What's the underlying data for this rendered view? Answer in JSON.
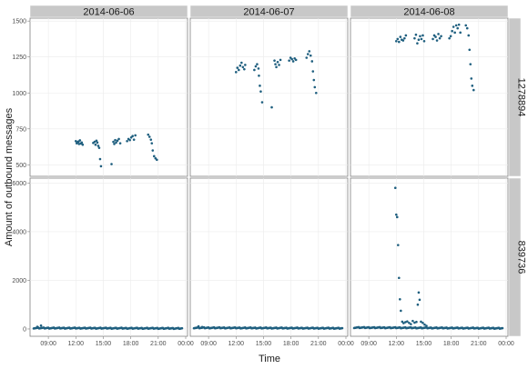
{
  "chart_data": {
    "type": "scatter",
    "xlabel": "Time",
    "ylabel": "Amount of outbound messages",
    "columns": [
      "2014-06-06",
      "2014-06-07",
      "2014-06-08"
    ],
    "rows": [
      "1278894",
      "839736"
    ],
    "x_ticks": [
      "09:00",
      "12:00",
      "15:00",
      "18:00",
      "21:00",
      "00:00"
    ],
    "x_tick_hours": [
      9,
      12,
      15,
      18,
      21,
      24
    ],
    "x_range_hours": [
      7,
      24.2
    ],
    "row_axes": [
      {
        "ylim": [
          420,
          1520
        ],
        "ticks": [
          500,
          750,
          1000,
          1250,
          1500
        ]
      },
      {
        "ylim": [
          -300,
          6200
        ],
        "ticks": [
          0,
          2000,
          4000,
          6000
        ]
      }
    ],
    "point_color": "#1f5f7f",
    "panels": [
      {
        "row": 0,
        "col": 0,
        "points": [
          [
            12.0,
            665
          ],
          [
            12.1,
            650
          ],
          [
            12.2,
            658
          ],
          [
            12.3,
            662
          ],
          [
            12.35,
            645
          ],
          [
            12.45,
            670
          ],
          [
            12.55,
            648
          ],
          [
            12.65,
            655
          ],
          [
            12.75,
            640
          ],
          [
            13.9,
            652
          ],
          [
            14.05,
            660
          ],
          [
            14.15,
            640
          ],
          [
            14.25,
            668
          ],
          [
            14.35,
            655
          ],
          [
            14.45,
            632
          ],
          [
            14.55,
            618
          ],
          [
            14.65,
            540
          ],
          [
            14.75,
            490
          ],
          [
            15.9,
            505
          ],
          [
            16.1,
            660
          ],
          [
            16.2,
            645
          ],
          [
            16.3,
            672
          ],
          [
            16.4,
            655
          ],
          [
            16.55,
            668
          ],
          [
            16.7,
            680
          ],
          [
            16.85,
            650
          ],
          [
            17.6,
            665
          ],
          [
            17.75,
            680
          ],
          [
            17.9,
            672
          ],
          [
            18.05,
            690
          ],
          [
            18.2,
            700
          ],
          [
            18.35,
            675
          ],
          [
            18.5,
            705
          ],
          [
            19.9,
            710
          ],
          [
            20.05,
            695
          ],
          [
            20.2,
            675
          ],
          [
            20.3,
            650
          ],
          [
            20.4,
            600
          ],
          [
            20.55,
            560
          ],
          [
            20.7,
            545
          ],
          [
            20.85,
            535
          ]
        ]
      },
      {
        "row": 0,
        "col": 1,
        "points": [
          [
            12.0,
            1145
          ],
          [
            12.15,
            1175
          ],
          [
            12.3,
            1160
          ],
          [
            12.45,
            1190
          ],
          [
            12.6,
            1210
          ],
          [
            12.75,
            1180
          ],
          [
            12.9,
            1165
          ],
          [
            13.0,
            1195
          ],
          [
            14.0,
            1160
          ],
          [
            14.15,
            1185
          ],
          [
            14.3,
            1200
          ],
          [
            14.45,
            1170
          ],
          [
            14.5,
            1120
          ],
          [
            14.6,
            1050
          ],
          [
            14.7,
            1010
          ],
          [
            14.85,
            935
          ],
          [
            15.9,
            900
          ],
          [
            16.2,
            1225
          ],
          [
            16.3,
            1200
          ],
          [
            16.4,
            1180
          ],
          [
            16.55,
            1215
          ],
          [
            16.7,
            1195
          ],
          [
            16.85,
            1230
          ],
          [
            17.8,
            1225
          ],
          [
            17.95,
            1245
          ],
          [
            18.1,
            1235
          ],
          [
            18.25,
            1220
          ],
          [
            18.4,
            1240
          ],
          [
            18.55,
            1230
          ],
          [
            19.7,
            1245
          ],
          [
            19.85,
            1270
          ],
          [
            20.0,
            1290
          ],
          [
            20.15,
            1260
          ],
          [
            20.3,
            1220
          ],
          [
            20.4,
            1150
          ],
          [
            20.5,
            1090
          ],
          [
            20.6,
            1040
          ],
          [
            20.75,
            1000
          ]
        ]
      },
      {
        "row": 0,
        "col": 2,
        "points": [
          [
            12.0,
            1360
          ],
          [
            12.15,
            1375
          ],
          [
            12.3,
            1355
          ],
          [
            12.45,
            1390
          ],
          [
            12.6,
            1370
          ],
          [
            12.75,
            1365
          ],
          [
            12.9,
            1380
          ],
          [
            13.05,
            1400
          ],
          [
            14.0,
            1380
          ],
          [
            14.15,
            1405
          ],
          [
            14.3,
            1345
          ],
          [
            14.45,
            1370
          ],
          [
            14.6,
            1395
          ],
          [
            14.75,
            1375
          ],
          [
            14.9,
            1400
          ],
          [
            15.05,
            1360
          ],
          [
            16.0,
            1375
          ],
          [
            16.15,
            1400
          ],
          [
            16.3,
            1390
          ],
          [
            16.45,
            1365
          ],
          [
            16.6,
            1410
          ],
          [
            16.75,
            1380
          ],
          [
            16.9,
            1395
          ],
          [
            17.8,
            1380
          ],
          [
            17.95,
            1395
          ],
          [
            18.1,
            1430
          ],
          [
            18.25,
            1460
          ],
          [
            18.4,
            1420
          ],
          [
            18.55,
            1470
          ],
          [
            18.7,
            1450
          ],
          [
            18.85,
            1475
          ],
          [
            19.0,
            1420
          ],
          [
            19.6,
            1470
          ],
          [
            19.75,
            1450
          ],
          [
            19.9,
            1400
          ],
          [
            20.0,
            1300
          ],
          [
            20.1,
            1200
          ],
          [
            20.2,
            1100
          ],
          [
            20.3,
            1050
          ],
          [
            20.45,
            1020
          ]
        ]
      },
      {
        "row": 1,
        "col": 0,
        "series_line": [
          7.4,
          23.6,
          40,
          25
        ],
        "points": [
          [
            7.8,
            90
          ],
          [
            8.2,
            140
          ]
        ]
      },
      {
        "row": 1,
        "col": 1,
        "series_line": [
          7.4,
          23.6,
          50,
          30
        ],
        "points": [
          [
            7.9,
            110
          ],
          [
            8.3,
            80
          ]
        ]
      },
      {
        "row": 1,
        "col": 2,
        "series_line": [
          7.4,
          23.6,
          60,
          30
        ],
        "points": [
          [
            11.9,
            5800
          ],
          [
            12.0,
            4700
          ],
          [
            12.1,
            4600
          ],
          [
            12.2,
            3450
          ],
          [
            12.3,
            2100
          ],
          [
            12.4,
            1220
          ],
          [
            12.5,
            750
          ],
          [
            12.65,
            300
          ],
          [
            12.8,
            240
          ],
          [
            13.0,
            280
          ],
          [
            13.2,
            310
          ],
          [
            13.4,
            250
          ],
          [
            13.6,
            200
          ],
          [
            13.8,
            330
          ],
          [
            14.0,
            260
          ],
          [
            14.2,
            290
          ],
          [
            14.35,
            1000
          ],
          [
            14.45,
            1500
          ],
          [
            14.55,
            1200
          ],
          [
            14.7,
            300
          ],
          [
            14.9,
            250
          ],
          [
            15.1,
            180
          ],
          [
            15.3,
            130
          ]
        ]
      }
    ]
  }
}
